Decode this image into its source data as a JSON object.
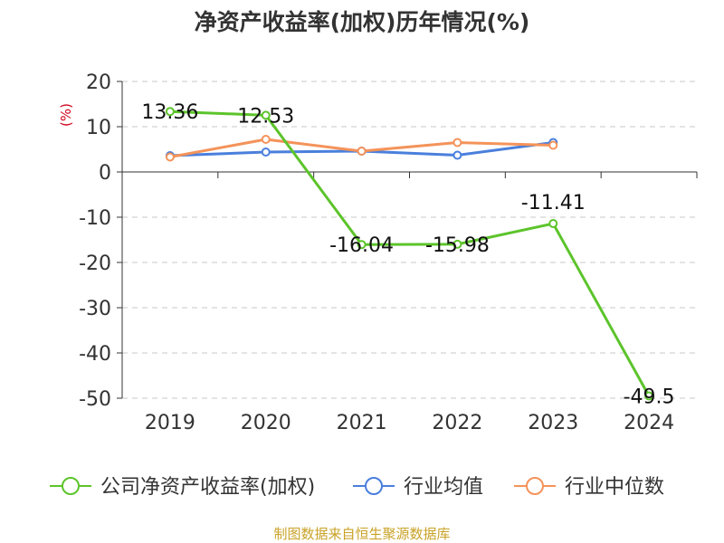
{
  "chart_data": {
    "type": "line",
    "title": "净资产收益率(加权)历年情况(%)",
    "ylabel": "(%)",
    "categories": [
      "2019",
      "2020",
      "2021",
      "2022",
      "2023",
      "2024"
    ],
    "ylim": [
      -50,
      20
    ],
    "yticks": [
      20,
      10,
      0,
      -10,
      -20,
      -30,
      -40,
      -50
    ],
    "grid": true,
    "legend_position": "bottom",
    "series": [
      {
        "name": "公司净资产收益率(加权)",
        "color": "#5cc42b",
        "values": [
          13.36,
          12.53,
          -16.04,
          -15.98,
          -11.41,
          -49.5
        ],
        "labels": [
          "13.36",
          "12.53",
          "-16.04",
          "-15.98",
          "-11.41",
          "-49.5"
        ]
      },
      {
        "name": "行业均值",
        "color": "#4a7fdc",
        "values": [
          3.6,
          4.4,
          4.6,
          3.7,
          6.5,
          null
        ]
      },
      {
        "name": "行业中位数",
        "color": "#f4935a",
        "values": [
          3.3,
          7.2,
          4.6,
          6.5,
          5.9,
          null
        ]
      }
    ]
  },
  "source_note": "制图数据来自恒生聚源数据库"
}
